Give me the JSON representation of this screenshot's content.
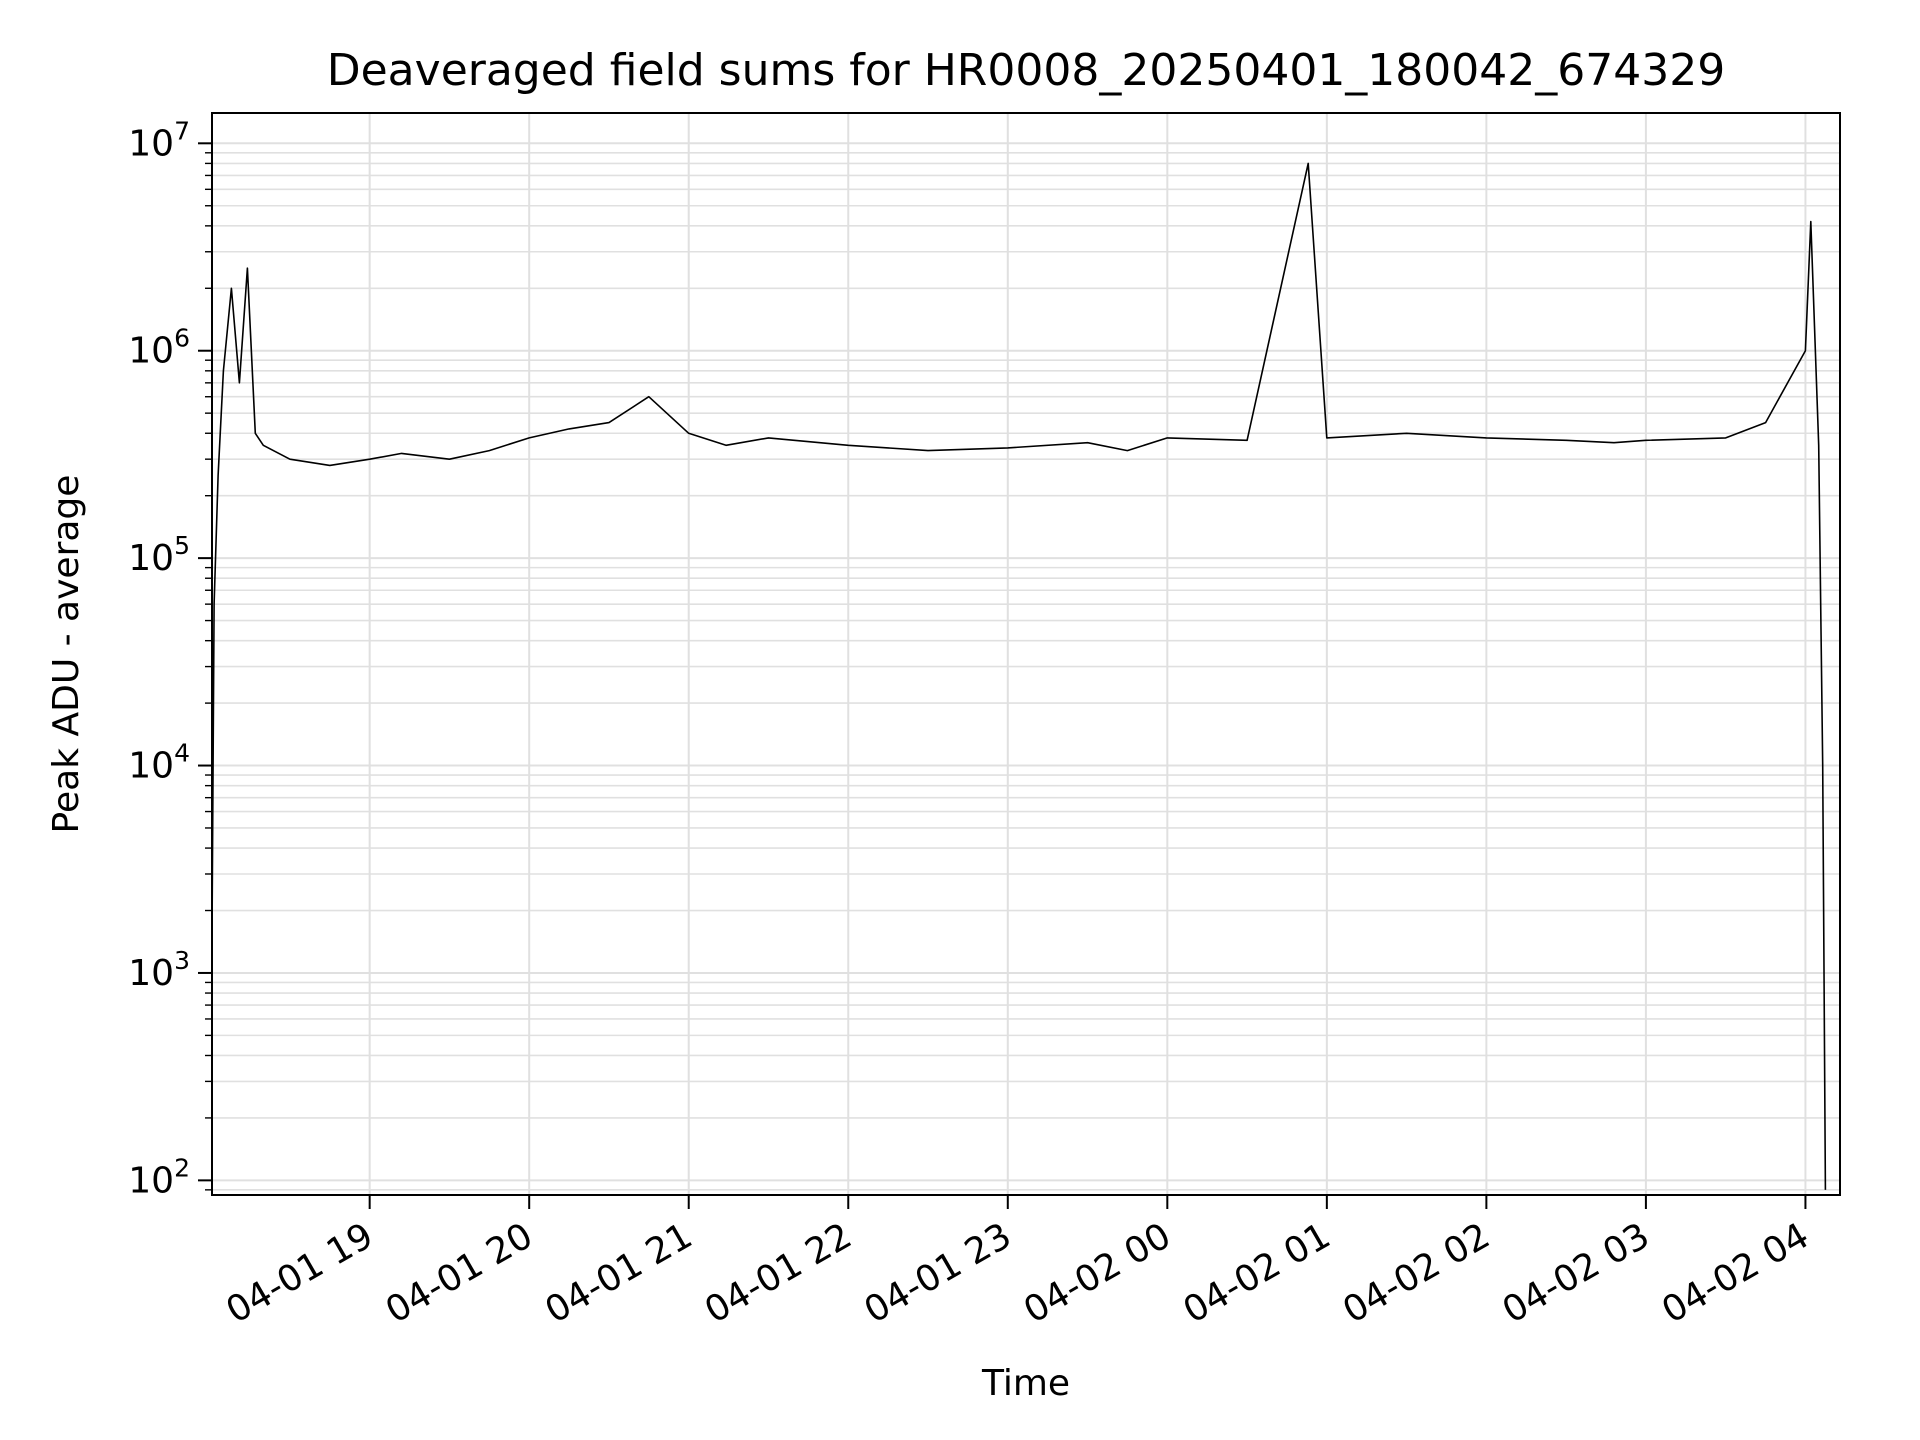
{
  "chart_data": {
    "type": "line",
    "title": "Deaveraged field sums for HR0008_20250401_180042_674329",
    "xlabel": "Time",
    "ylabel": "Peak ADU - average",
    "yscale": "log",
    "ylim": [
      85,
      14000000
    ],
    "xlim": [
      "2025-04-01 18:00:42",
      "2025-04-02 04:13:00"
    ],
    "grid": true,
    "line_color": "#000000",
    "grid_color": "#e0e0e0",
    "x_ticks": [
      "2025-04-01 19:00",
      "2025-04-01 20:00",
      "2025-04-01 21:00",
      "2025-04-01 22:00",
      "2025-04-01 23:00",
      "2025-04-02 00:00",
      "2025-04-02 01:00",
      "2025-04-02 02:00",
      "2025-04-02 03:00",
      "2025-04-02 04:00"
    ],
    "x_tick_labels": [
      "04-01 19",
      "04-01 20",
      "04-01 21",
      "04-01 22",
      "04-01 23",
      "04-02 00",
      "04-02 01",
      "04-02 02",
      "04-02 03",
      "04-02 04"
    ],
    "y_ticks": [
      {
        "value": 100,
        "base": "10",
        "exp": "2"
      },
      {
        "value": 1000,
        "base": "10",
        "exp": "3"
      },
      {
        "value": 10000,
        "base": "10",
        "exp": "4"
      },
      {
        "value": 100000,
        "base": "10",
        "exp": "5"
      },
      {
        "value": 1000000,
        "base": "10",
        "exp": "6"
      },
      {
        "value": 10000000,
        "base": "10",
        "exp": "7"
      }
    ],
    "series": [
      {
        "x": [
          "2025-04-01 18:00:42",
          "2025-04-01 18:01:30",
          "2025-04-01 18:03:00",
          "2025-04-01 18:05:00",
          "2025-04-01 18:08:00",
          "2025-04-01 18:11:00",
          "2025-04-01 18:14:00",
          "2025-04-01 18:17:00",
          "2025-04-01 18:20:00",
          "2025-04-01 18:30:00",
          "2025-04-01 18:45:00",
          "2025-04-01 19:00:00",
          "2025-04-01 19:12:00",
          "2025-04-01 19:30:00",
          "2025-04-01 19:45:00",
          "2025-04-01 20:00:00",
          "2025-04-01 20:15:00",
          "2025-04-01 20:30:00",
          "2025-04-01 20:45:00",
          "2025-04-01 21:00:00",
          "2025-04-01 21:14:00",
          "2025-04-01 21:30:00",
          "2025-04-01 22:00:00",
          "2025-04-01 22:30:00",
          "2025-04-01 23:00:00",
          "2025-04-01 23:30:00",
          "2025-04-01 23:45:00",
          "2025-04-02 00:00:00",
          "2025-04-02 00:30:00",
          "2025-04-02 00:53:00",
          "2025-04-02 01:00:00",
          "2025-04-02 01:30:00",
          "2025-04-02 02:00:00",
          "2025-04-02 02:30:00",
          "2025-04-02 02:48:00",
          "2025-04-02 03:00:00",
          "2025-04-02 03:30:00",
          "2025-04-02 03:45:00",
          "2025-04-02 04:00:00",
          "2025-04-02 04:02:00",
          "2025-04-02 04:05:00",
          "2025-04-02 04:06:30",
          "2025-04-02 04:07:30"
        ],
        "y": [
          1500,
          60000,
          250000,
          800000,
          2000000,
          700000,
          2500000,
          400000,
          350000,
          300000,
          280000,
          300000,
          320000,
          300000,
          330000,
          380000,
          420000,
          450000,
          600000,
          400000,
          350000,
          380000,
          350000,
          330000,
          340000,
          360000,
          330000,
          380000,
          370000,
          8000000,
          380000,
          400000,
          380000,
          370000,
          360000,
          370000,
          380000,
          450000,
          1000000,
          4200000,
          350000,
          10000,
          90
        ]
      }
    ]
  }
}
